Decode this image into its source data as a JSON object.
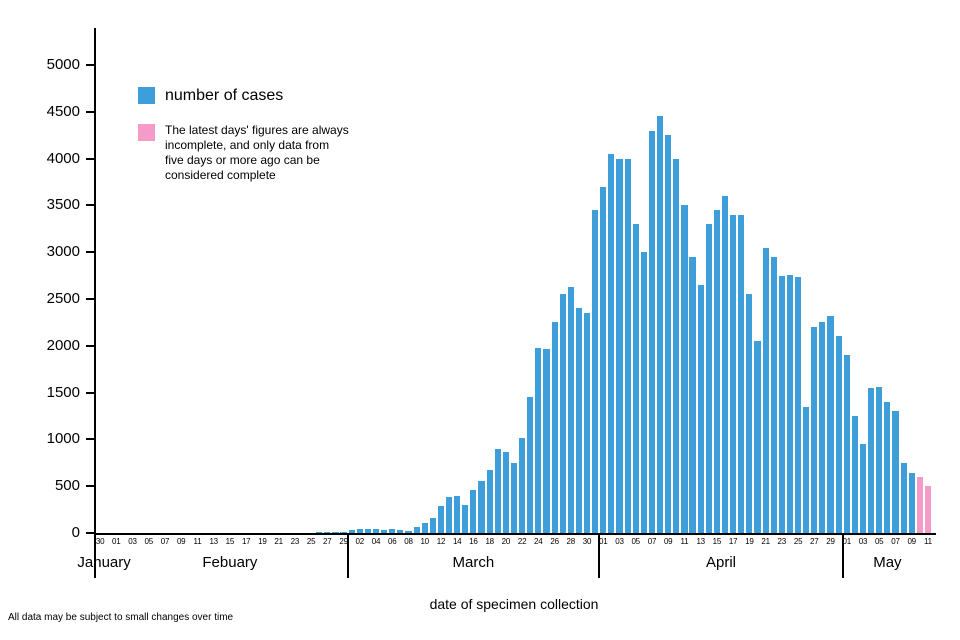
{
  "legend": {
    "cases_label": "number of cases",
    "incomplete_note": "The latest days' figures are always\nincomplete, and only data from\nfive days or more ago can be\nconsidered complete"
  },
  "footer": {
    "axis_caption": "date of specimen collection",
    "disclaimer": "All data may be subject to small changes over time"
  },
  "chart_data": {
    "type": "bar",
    "title": "",
    "xlabel": "date of specimen collection",
    "ylabel": "",
    "ylim": [
      0,
      5000
    ],
    "ytick_step": 500,
    "grid": false,
    "legend_position": "top-left",
    "colors": {
      "cases": "#3d9ed9",
      "incomplete": "#f59bc8"
    },
    "incomplete_last_n": 2,
    "months": [
      {
        "name": "January",
        "day_start": 30,
        "values": [
          1,
          1
        ]
      },
      {
        "name": "Febuary",
        "day_start": 1,
        "values": [
          0,
          0,
          1,
          0,
          1,
          0,
          0,
          1,
          0,
          1,
          1,
          2,
          1,
          2,
          1,
          1,
          0,
          1,
          1,
          2,
          2,
          2,
          3,
          4,
          5,
          6,
          8,
          10,
          12
        ]
      },
      {
        "name": "March",
        "day_start": 1,
        "values": [
          35,
          40,
          45,
          40,
          35,
          45,
          30,
          25,
          60,
          110,
          160,
          290,
          380,
          400,
          300,
          460,
          560,
          670,
          900,
          870,
          750,
          1020,
          1450,
          1980,
          1970,
          2250,
          2550,
          2630,
          2400,
          2350,
          3450
        ]
      },
      {
        "name": "April",
        "day_start": 1,
        "values": [
          3700,
          4050,
          4000,
          4000,
          3300,
          3000,
          4300,
          4450,
          4250,
          4000,
          3500,
          2950,
          2650,
          3300,
          3450,
          3600,
          3400,
          3400,
          2550,
          2050,
          3050,
          2950,
          2750,
          2760,
          2740,
          1350,
          2200,
          2250,
          2320,
          2100
        ]
      },
      {
        "name": "May",
        "day_start": 1,
        "values": [
          1900,
          1250,
          950,
          1550,
          1560,
          1400,
          1300,
          750,
          640,
          600,
          500
        ]
      }
    ]
  }
}
